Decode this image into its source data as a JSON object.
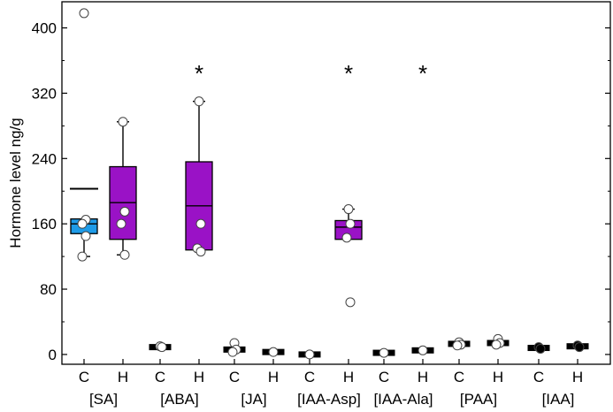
{
  "chart_data": {
    "type": "box",
    "title": "",
    "ylabel": "Hormone level ng/g",
    "xlabel": "",
    "ylim": [
      -12,
      432
    ],
    "yticks": [
      0,
      80,
      160,
      240,
      320,
      400
    ],
    "grid": false,
    "colors": {
      "control": "#1e9be8",
      "treated": "#9a12c6",
      "dark": "#000000",
      "marker_fill": "#ffffff"
    },
    "categories": [
      "C",
      "H",
      "C",
      "H",
      "C",
      "H",
      "C",
      "H",
      "C",
      "H",
      "C",
      "H",
      "C",
      "H"
    ],
    "groups": [
      "[SA]",
      "[ABA]",
      "[JA]",
      "[IAA-Asp]",
      "[IAA-Ala]",
      "[PAA]",
      "[IAA]"
    ],
    "boxes": [
      {
        "group": "[SA]",
        "label": "C",
        "color": "#1e9be8",
        "q1": 148,
        "median": 160,
        "q3": 166,
        "whisker_low": 120,
        "whisker_high": 166,
        "mean": 203,
        "points": [
          418,
          165,
          160,
          145,
          120
        ],
        "significant": false
      },
      {
        "group": "[SA]",
        "label": "H",
        "color": "#9a12c6",
        "q1": 141,
        "median": 186,
        "q3": 230,
        "whisker_low": 122,
        "whisker_high": 285,
        "points": [
          285,
          175,
          160,
          122
        ],
        "significant": false
      },
      {
        "group": "[ABA]",
        "label": "C",
        "color": "#000000",
        "q1": 9,
        "median": 9,
        "q3": 10,
        "whisker_low": 9,
        "whisker_high": 10,
        "points": [
          10,
          9
        ],
        "significant": false
      },
      {
        "group": "[ABA]",
        "label": "H",
        "color": "#9a12c6",
        "q1": 128,
        "median": 182,
        "q3": 236,
        "whisker_low": 128,
        "whisker_high": 310,
        "points": [
          310,
          160,
          130,
          126
        ],
        "significant": true
      },
      {
        "group": "[JA]",
        "label": "C",
        "color": "#000000",
        "q1": 3,
        "median": 6,
        "q3": 9,
        "whisker_low": 3,
        "whisker_high": 15,
        "points": [
          14,
          6,
          3
        ],
        "significant": false
      },
      {
        "group": "[JA]",
        "label": "H",
        "color": "#000000",
        "q1": 2,
        "median": 3,
        "q3": 4,
        "whisker_low": 2,
        "whisker_high": 4,
        "points": [
          3
        ],
        "significant": false
      },
      {
        "group": "[IAA-Asp]",
        "label": "C",
        "color": "#000000",
        "q1": 0,
        "median": 0,
        "q3": 1,
        "whisker_low": 0,
        "whisker_high": 1,
        "points": [
          0
        ],
        "significant": false
      },
      {
        "group": "[IAA-Asp]",
        "label": "H",
        "color": "#9a12c6",
        "q1": 141,
        "median": 156,
        "q3": 164,
        "whisker_low": 141,
        "whisker_high": 178,
        "points": [
          178,
          160,
          143,
          64
        ],
        "significant": true
      },
      {
        "group": "[IAA-Ala]",
        "label": "C",
        "color": "#000000",
        "q1": 2,
        "median": 2,
        "q3": 3,
        "whisker_low": 2,
        "whisker_high": 3,
        "points": [
          2
        ],
        "significant": false
      },
      {
        "group": "[IAA-Ala]",
        "label": "H",
        "color": "#000000",
        "q1": 4,
        "median": 5,
        "q3": 6,
        "whisker_low": 4,
        "whisker_high": 6,
        "points": [
          5
        ],
        "significant": true
      },
      {
        "group": "[PAA]",
        "label": "C",
        "color": "#000000",
        "q1": 11,
        "median": 13,
        "q3": 15,
        "whisker_low": 11,
        "whisker_high": 15,
        "points": [
          15,
          12,
          11
        ],
        "significant": false
      },
      {
        "group": "[PAA]",
        "label": "H",
        "color": "#000000",
        "q1": 12,
        "median": 14,
        "q3": 16,
        "whisker_low": 11,
        "whisker_high": 18,
        "points": [
          19,
          14,
          12
        ],
        "significant": false
      },
      {
        "group": "[IAA]",
        "label": "C",
        "color": "#000000",
        "q1": 6,
        "median": 8,
        "q3": 10,
        "whisker_low": 6,
        "whisker_high": 10,
        "points": [
          9,
          7
        ],
        "significant": false
      },
      {
        "group": "[IAA]",
        "label": "H",
        "color": "#000000",
        "q1": 8,
        "median": 10,
        "q3": 12,
        "whisker_low": 8,
        "whisker_high": 12,
        "points": [
          11,
          9
        ],
        "significant": false
      }
    ],
    "significance_marker": "*"
  }
}
